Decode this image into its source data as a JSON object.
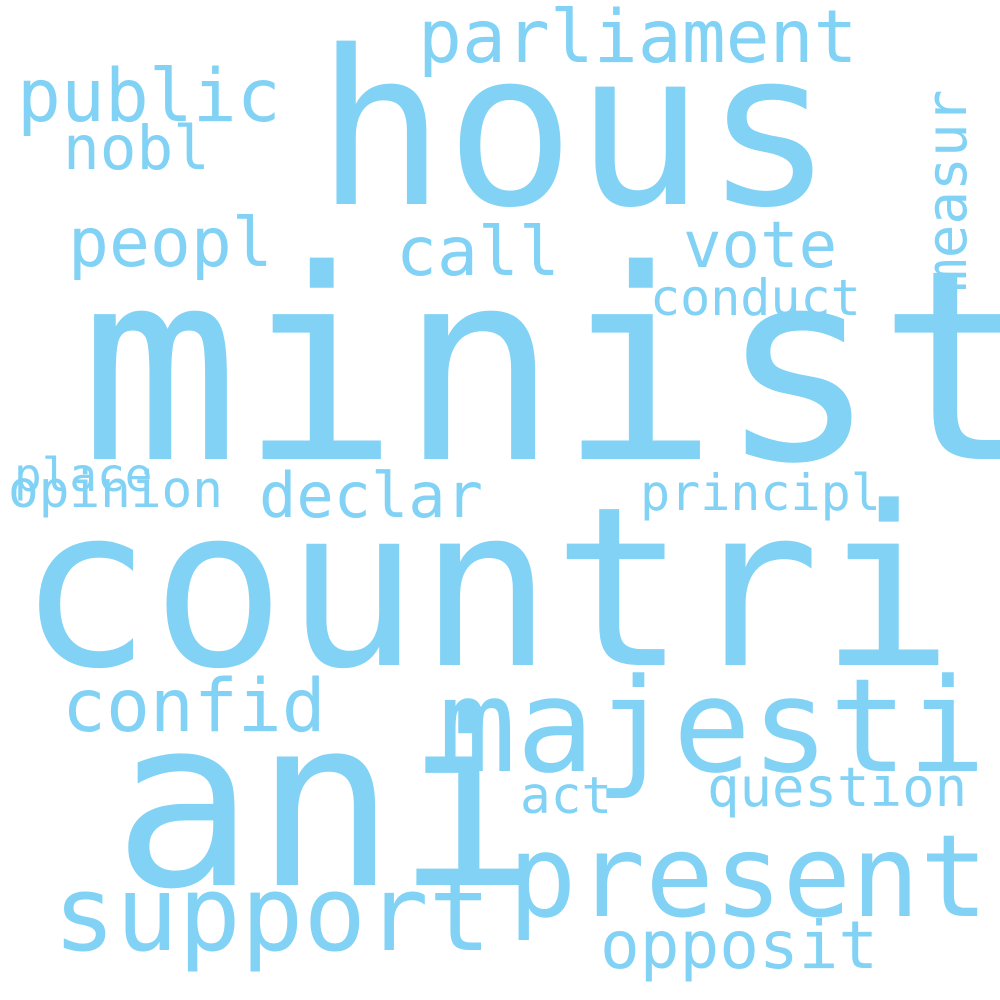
{
  "word_cloud": {
    "color": "#81d2f4",
    "background": "#ffffff",
    "words": {
      "countri": "countri",
      "minist": "minist",
      "hous": "hous",
      "ani": "ani",
      "majesti": "majesti",
      "present": "present",
      "support": "support",
      "parliament": "parliament",
      "public": "public",
      "nobl": "nobl",
      "peopl": "peopl",
      "call": "call",
      "vote": "vote",
      "measur": "measur",
      "conduct": "conduct",
      "place": "place",
      "opinion": "opinion",
      "declar": "declar",
      "principl": "principl",
      "confid": "confid",
      "act": "act",
      "question": "question",
      "opposit": "opposit"
    }
  }
}
